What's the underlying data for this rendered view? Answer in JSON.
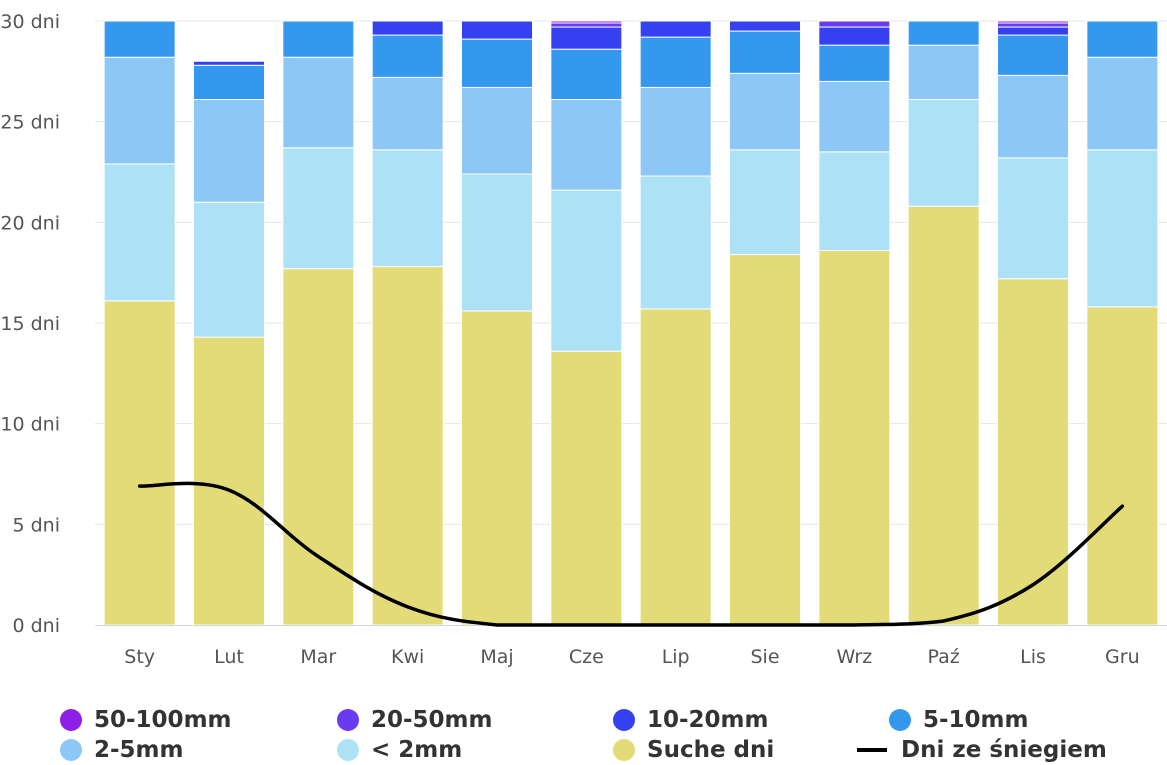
{
  "chart_data": {
    "type": "bar",
    "stacked": true,
    "categories": [
      "Sty",
      "Lut",
      "Mar",
      "Kwi",
      "Maj",
      "Cze",
      "Lip",
      "Sie",
      "Wrz",
      "Paź",
      "Lis",
      "Gru"
    ],
    "ylim": [
      0,
      30
    ],
    "yticks": [
      0,
      5,
      10,
      15,
      20,
      25,
      30
    ],
    "ytick_labels": [
      "0 dni",
      "5 dni",
      "10 dni",
      "15 dni",
      "20 dni",
      "25 dni",
      "30 dni"
    ],
    "grid": true,
    "legend_position": "bottom",
    "series": [
      {
        "name": "Suche dni",
        "color": "#e2db77",
        "values": [
          16.1,
          14.3,
          17.7,
          17.8,
          15.6,
          13.6,
          15.7,
          18.4,
          18.6,
          20.8,
          17.2,
          15.8
        ]
      },
      {
        "name": "< 2mm",
        "color": "#ace1f6",
        "values": [
          6.8,
          6.7,
          6.0,
          5.8,
          6.8,
          8.0,
          6.6,
          5.2,
          4.9,
          5.3,
          6.0,
          7.8
        ]
      },
      {
        "name": "2-5mm",
        "color": "#8dc7f5",
        "values": [
          5.3,
          5.1,
          4.5,
          3.6,
          4.3,
          4.5,
          4.4,
          3.8,
          3.5,
          2.7,
          4.1,
          4.6
        ]
      },
      {
        "name": "5-10mm",
        "color": "#3499ee",
        "values": [
          1.8,
          1.7,
          1.8,
          2.1,
          2.4,
          2.5,
          2.5,
          2.1,
          1.8,
          1.2,
          2.0,
          1.8
        ]
      },
      {
        "name": "10-20mm",
        "color": "#3541f0",
        "values": [
          0.0,
          0.2,
          0.0,
          0.7,
          0.9,
          1.1,
          0.8,
          0.5,
          0.9,
          0.0,
          0.4,
          0.0
        ]
      },
      {
        "name": "20-50mm",
        "color": "#6a3af0",
        "values": [
          0.0,
          0.0,
          0.0,
          0.0,
          0.0,
          0.2,
          0.0,
          0.0,
          0.3,
          0.0,
          0.2,
          0.0
        ]
      },
      {
        "name": "50-100mm",
        "color": "#8f21e6",
        "values": [
          0.0,
          0.0,
          0.0,
          0.0,
          0.0,
          0.1,
          0.0,
          0.0,
          0.0,
          0.0,
          0.1,
          0.0
        ]
      }
    ],
    "line_series": {
      "name": "Dni ze śniegiem",
      "color": "#000000",
      "values": [
        6.9,
        6.7,
        3.4,
        0.9,
        0.0,
        0.0,
        0.0,
        0.0,
        0.0,
        0.2,
        2.0,
        5.9
      ]
    }
  },
  "legend": [
    {
      "label": "50-100mm",
      "color": "#8f21e6",
      "kind": "circle"
    },
    {
      "label": "20-50mm",
      "color": "#6a3af0",
      "kind": "circle"
    },
    {
      "label": "10-20mm",
      "color": "#3541f0",
      "kind": "circle"
    },
    {
      "label": "5-10mm",
      "color": "#3499ee",
      "kind": "circle"
    },
    {
      "label": "2-5mm",
      "color": "#8dc7f5",
      "kind": "circle"
    },
    {
      "label": "< 2mm",
      "color": "#ace1f6",
      "kind": "circle"
    },
    {
      "label": "Suche dni",
      "color": "#e2db77",
      "kind": "circle"
    },
    {
      "label": "Dni ze śniegiem",
      "color": "#000000",
      "kind": "line"
    }
  ]
}
